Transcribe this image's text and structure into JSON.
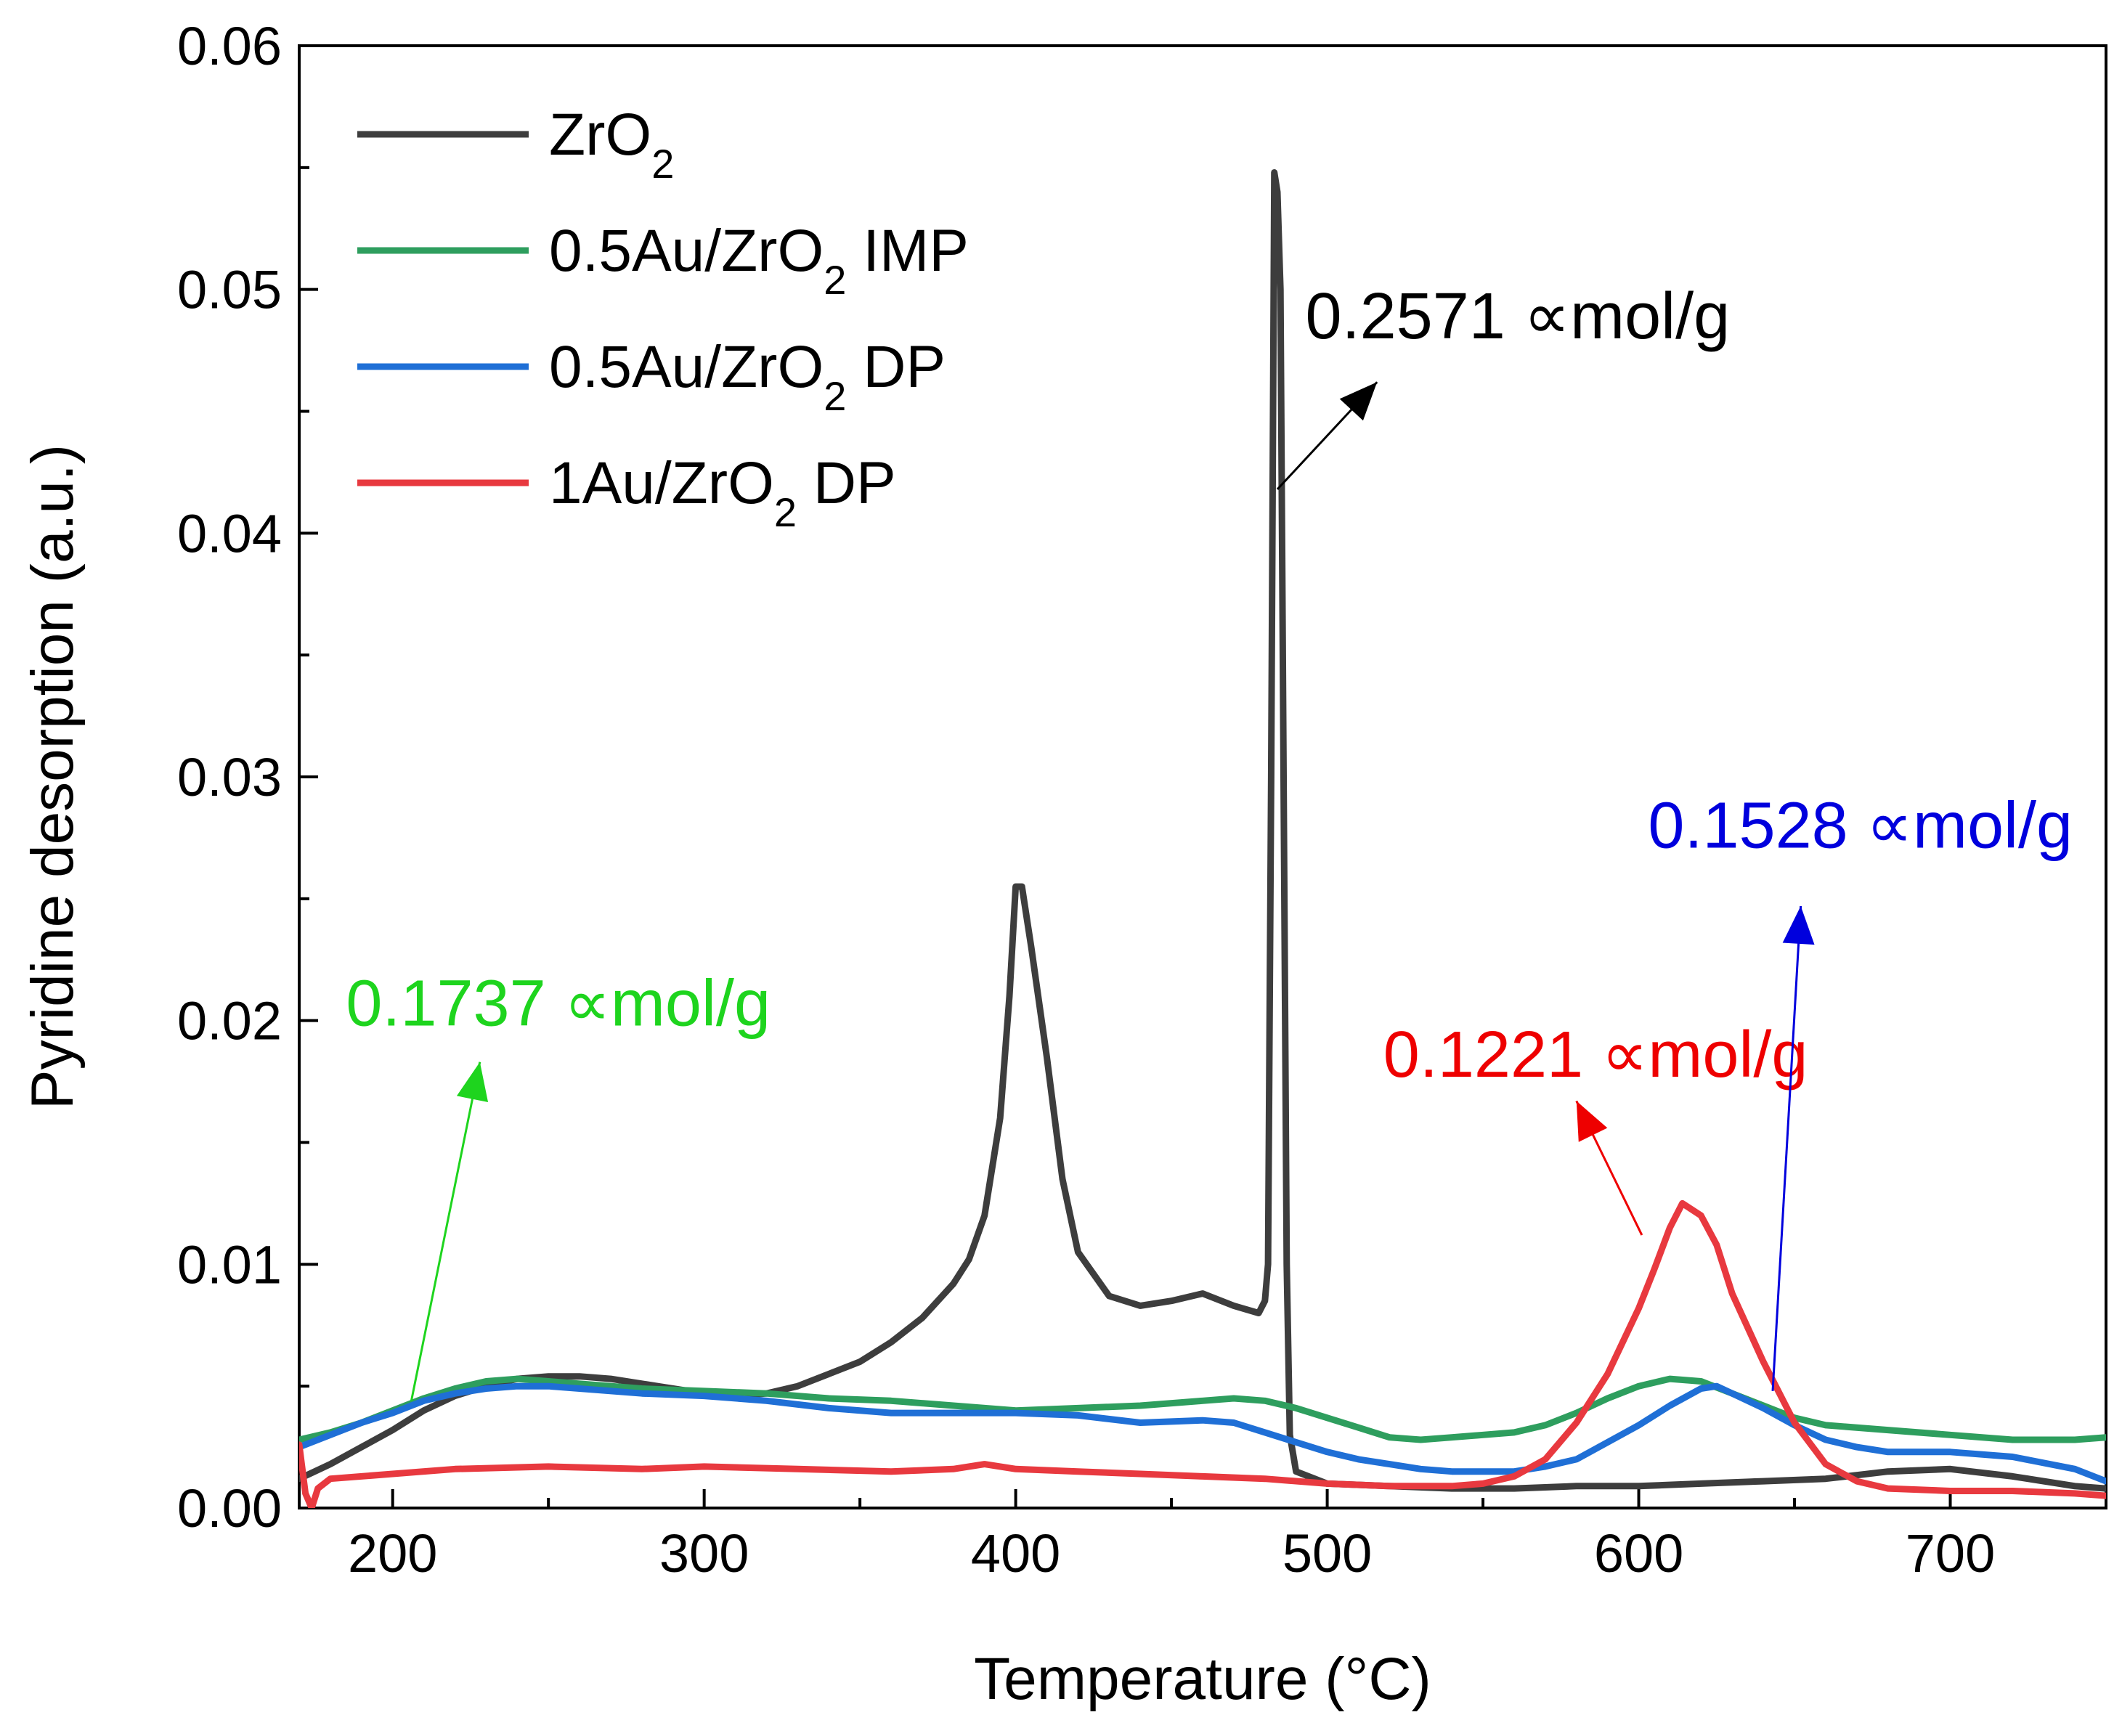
{
  "chart_data": {
    "type": "line",
    "title": "",
    "xlabel": "Temperature (°C)",
    "ylabel": "Pyridine desorption (a.u.)",
    "xlim": [
      170,
      750
    ],
    "ylim": [
      0,
      0.06
    ],
    "x_ticks": [
      200,
      300,
      400,
      500,
      600,
      700
    ],
    "x_tick_labels": [
      "200",
      "300",
      "400",
      "500",
      "600",
      "700"
    ],
    "y_ticks": [
      0,
      0.01,
      0.02,
      0.03,
      0.04,
      0.05,
      0.06
    ],
    "y_tick_labels": [
      "0.00",
      "0.01",
      "0.02",
      "0.03",
      "0.04",
      "0.05",
      "0.06"
    ],
    "legend_position": "top-left",
    "series": [
      {
        "name": "ZrO2",
        "label_main": "ZrO",
        "label_sub": "2",
        "label_tail": "",
        "color": "#3d3d3d",
        "points": [
          [
            170,
            0.0012
          ],
          [
            180,
            0.0018
          ],
          [
            190,
            0.0025
          ],
          [
            200,
            0.0032
          ],
          [
            210,
            0.004
          ],
          [
            220,
            0.0046
          ],
          [
            230,
            0.005
          ],
          [
            240,
            0.0053
          ],
          [
            250,
            0.0054
          ],
          [
            260,
            0.0054
          ],
          [
            270,
            0.0053
          ],
          [
            280,
            0.0051
          ],
          [
            290,
            0.0049
          ],
          [
            300,
            0.0047
          ],
          [
            310,
            0.0046
          ],
          [
            320,
            0.0047
          ],
          [
            330,
            0.005
          ],
          [
            340,
            0.0055
          ],
          [
            350,
            0.006
          ],
          [
            360,
            0.0068
          ],
          [
            370,
            0.0078
          ],
          [
            380,
            0.0092
          ],
          [
            385,
            0.0102
          ],
          [
            390,
            0.012
          ],
          [
            395,
            0.016
          ],
          [
            398,
            0.021
          ],
          [
            400,
            0.0255
          ],
          [
            402,
            0.0255
          ],
          [
            405,
            0.023
          ],
          [
            410,
            0.0185
          ],
          [
            415,
            0.0135
          ],
          [
            420,
            0.0105
          ],
          [
            430,
            0.0087
          ],
          [
            440,
            0.0083
          ],
          [
            450,
            0.0085
          ],
          [
            460,
            0.0088
          ],
          [
            470,
            0.0083
          ],
          [
            478,
            0.008
          ],
          [
            480,
            0.0085
          ],
          [
            481,
            0.01
          ],
          [
            482,
            0.03
          ],
          [
            483,
            0.0548
          ],
          [
            484,
            0.054
          ],
          [
            485,
            0.05
          ],
          [
            486,
            0.03
          ],
          [
            487,
            0.01
          ],
          [
            488,
            0.003
          ],
          [
            490,
            0.0015
          ],
          [
            500,
            0.001
          ],
          [
            520,
            0.0009
          ],
          [
            540,
            0.0008
          ],
          [
            560,
            0.0008
          ],
          [
            580,
            0.0009
          ],
          [
            600,
            0.0009
          ],
          [
            620,
            0.001
          ],
          [
            640,
            0.0011
          ],
          [
            660,
            0.0012
          ],
          [
            680,
            0.0015
          ],
          [
            700,
            0.0016
          ],
          [
            720,
            0.0013
          ],
          [
            740,
            0.0009
          ],
          [
            750,
            0.0008
          ]
        ]
      },
      {
        "name": "0.5Au/ZrO2 IMP",
        "label_main": "0.5Au/ZrO",
        "label_sub": "2",
        "label_tail": " IMP",
        "color": "#2e9e5e",
        "points": [
          [
            170,
            0.0028
          ],
          [
            180,
            0.0031
          ],
          [
            190,
            0.0035
          ],
          [
            200,
            0.004
          ],
          [
            210,
            0.0045
          ],
          [
            220,
            0.0049
          ],
          [
            230,
            0.0052
          ],
          [
            240,
            0.0053
          ],
          [
            250,
            0.0052
          ],
          [
            260,
            0.0051
          ],
          [
            280,
            0.0049
          ],
          [
            300,
            0.0048
          ],
          [
            320,
            0.0047
          ],
          [
            340,
            0.0045
          ],
          [
            360,
            0.0044
          ],
          [
            380,
            0.0042
          ],
          [
            400,
            0.004
          ],
          [
            420,
            0.0041
          ],
          [
            440,
            0.0042
          ],
          [
            460,
            0.0044
          ],
          [
            470,
            0.0045
          ],
          [
            480,
            0.0044
          ],
          [
            490,
            0.0041
          ],
          [
            500,
            0.0037
          ],
          [
            510,
            0.0033
          ],
          [
            520,
            0.0029
          ],
          [
            530,
            0.0028
          ],
          [
            540,
            0.0029
          ],
          [
            550,
            0.003
          ],
          [
            560,
            0.0031
          ],
          [
            570,
            0.0034
          ],
          [
            580,
            0.0039
          ],
          [
            590,
            0.0045
          ],
          [
            600,
            0.005
          ],
          [
            610,
            0.0053
          ],
          [
            620,
            0.0052
          ],
          [
            630,
            0.0047
          ],
          [
            640,
            0.0042
          ],
          [
            650,
            0.0037
          ],
          [
            660,
            0.0034
          ],
          [
            680,
            0.0032
          ],
          [
            700,
            0.003
          ],
          [
            720,
            0.0028
          ],
          [
            740,
            0.0028
          ],
          [
            750,
            0.0029
          ]
        ]
      },
      {
        "name": "0.5Au/ZrO2 DP",
        "label_main": "0.5Au/ZrO",
        "label_sub": "2",
        "label_tail": " DP",
        "color": "#1f6fd6",
        "points": [
          [
            170,
            0.0025
          ],
          [
            180,
            0.003
          ],
          [
            190,
            0.0035
          ],
          [
            200,
            0.0039
          ],
          [
            210,
            0.0044
          ],
          [
            220,
            0.0047
          ],
          [
            230,
            0.0049
          ],
          [
            240,
            0.005
          ],
          [
            250,
            0.005
          ],
          [
            260,
            0.0049
          ],
          [
            280,
            0.0047
          ],
          [
            300,
            0.0046
          ],
          [
            320,
            0.0044
          ],
          [
            340,
            0.0041
          ],
          [
            360,
            0.0039
          ],
          [
            380,
            0.0039
          ],
          [
            400,
            0.0039
          ],
          [
            420,
            0.0038
          ],
          [
            440,
            0.0035
          ],
          [
            460,
            0.0036
          ],
          [
            470,
            0.0035
          ],
          [
            480,
            0.0031
          ],
          [
            490,
            0.0027
          ],
          [
            500,
            0.0023
          ],
          [
            510,
            0.002
          ],
          [
            520,
            0.0018
          ],
          [
            530,
            0.0016
          ],
          [
            540,
            0.0015
          ],
          [
            550,
            0.0015
          ],
          [
            560,
            0.0015
          ],
          [
            570,
            0.0017
          ],
          [
            580,
            0.002
          ],
          [
            590,
            0.0027
          ],
          [
            600,
            0.0034
          ],
          [
            610,
            0.0042
          ],
          [
            620,
            0.0049
          ],
          [
            625,
            0.005
          ],
          [
            630,
            0.0047
          ],
          [
            640,
            0.0041
          ],
          [
            650,
            0.0034
          ],
          [
            660,
            0.0028
          ],
          [
            670,
            0.0025
          ],
          [
            680,
            0.0023
          ],
          [
            700,
            0.0023
          ],
          [
            720,
            0.0021
          ],
          [
            740,
            0.0016
          ],
          [
            750,
            0.0011
          ]
        ]
      },
      {
        "name": "1Au/ZrO2 DP",
        "label_main": "1Au/ZrO",
        "label_sub": "2",
        "label_tail": " DP",
        "color": "#e8393f",
        "points": [
          [
            170,
            0.0026
          ],
          [
            172,
            0.0006
          ],
          [
            174,
            0.0
          ],
          [
            176,
            0.0008
          ],
          [
            180,
            0.0012
          ],
          [
            200,
            0.0014
          ],
          [
            220,
            0.0016
          ],
          [
            250,
            0.0017
          ],
          [
            280,
            0.0016
          ],
          [
            300,
            0.0017
          ],
          [
            330,
            0.0016
          ],
          [
            360,
            0.0015
          ],
          [
            380,
            0.0016
          ],
          [
            390,
            0.0018
          ],
          [
            400,
            0.0016
          ],
          [
            420,
            0.0015
          ],
          [
            440,
            0.0014
          ],
          [
            460,
            0.0013
          ],
          [
            480,
            0.0012
          ],
          [
            500,
            0.001
          ],
          [
            520,
            0.0009
          ],
          [
            540,
            0.0009
          ],
          [
            550,
            0.001
          ],
          [
            560,
            0.0013
          ],
          [
            570,
            0.002
          ],
          [
            580,
            0.0035
          ],
          [
            590,
            0.0055
          ],
          [
            600,
            0.0082
          ],
          [
            605,
            0.0098
          ],
          [
            610,
            0.0115
          ],
          [
            614,
            0.0125
          ],
          [
            620,
            0.012
          ],
          [
            625,
            0.0108
          ],
          [
            630,
            0.0088
          ],
          [
            640,
            0.006
          ],
          [
            650,
            0.0035
          ],
          [
            660,
            0.0018
          ],
          [
            670,
            0.0011
          ],
          [
            680,
            0.0008
          ],
          [
            700,
            0.0007
          ],
          [
            720,
            0.0007
          ],
          [
            740,
            0.0006
          ],
          [
            750,
            0.0005
          ]
        ]
      }
    ],
    "annotations": [
      {
        "text": "0.2571 ∝mol/g",
        "color": "#000000",
        "x": 493,
        "y": 0.048,
        "arrow_from": [
          484,
          0.0418
        ],
        "arrow_to": [
          516,
          0.0462
        ]
      },
      {
        "text": "0.1737 ∝mol/g",
        "color": "#1ed41e",
        "x": 185,
        "y": 0.0198,
        "arrow_from": [
          206,
          0.0044
        ],
        "arrow_to": [
          228,
          0.0183
        ]
      },
      {
        "text": "0.1221 ∝mol/g",
        "color": "#ee0000",
        "x": 518,
        "y": 0.0177,
        "arrow_from": [
          601,
          0.0112
        ],
        "arrow_to": [
          580,
          0.0167
        ]
      },
      {
        "text": "0.1528 ∝mol/g",
        "color": "#0000dd",
        "x": 603,
        "y": 0.0271,
        "arrow_from": [
          643,
          0.0048
        ],
        "arrow_to": [
          652,
          0.0247
        ]
      }
    ]
  }
}
